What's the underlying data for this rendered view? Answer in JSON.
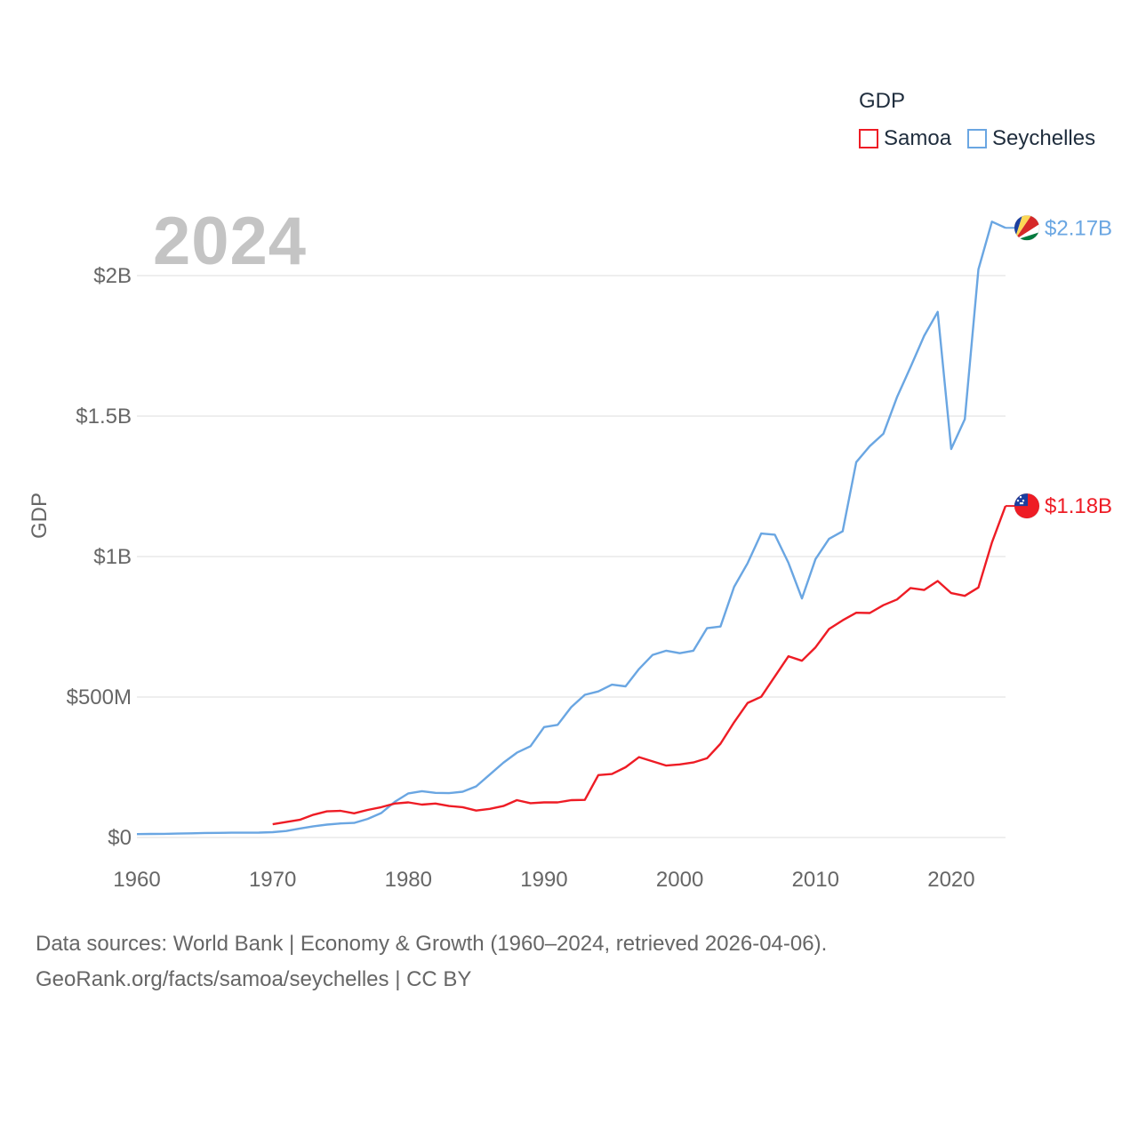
{
  "legend": {
    "title": "GDP",
    "items": [
      {
        "name": "Samoa",
        "color": "#ee1c25"
      },
      {
        "name": "Seychelles",
        "color": "#6aa6e2"
      }
    ]
  },
  "year_label": "2024",
  "footer": {
    "line1": "Data sources: World Bank | Economy & Growth (1960–2024, retrieved 2026-04-06).",
    "line2": "GeoRank.org/facts/samoa/seychelles | CC BY"
  },
  "chart_data": {
    "type": "line",
    "title": "",
    "xlabel": "",
    "ylabel": "GDP",
    "xlim": [
      1960,
      2024
    ],
    "ylim": [
      0,
      2000000000
    ],
    "x_ticks": [
      {
        "value": 1960,
        "label": "1960"
      },
      {
        "value": 1970,
        "label": "1970"
      },
      {
        "value": 1980,
        "label": "1980"
      },
      {
        "value": 1990,
        "label": "1990"
      },
      {
        "value": 2000,
        "label": "2000"
      },
      {
        "value": 2010,
        "label": "2010"
      },
      {
        "value": 2020,
        "label": "2020"
      }
    ],
    "y_ticks": [
      {
        "value": 0,
        "label": "$0"
      },
      {
        "value": 500000000,
        "label": "$500M"
      },
      {
        "value": 1000000000,
        "label": "$1B"
      },
      {
        "value": 1500000000,
        "label": "$1.5B"
      },
      {
        "value": 2000000000,
        "label": "$2B"
      }
    ],
    "grid": true,
    "legend_position": "top-right",
    "series": [
      {
        "name": "Seychelles",
        "color": "#6aa6e2",
        "end_label": "$2.17B",
        "x": [
          1960,
          1961,
          1962,
          1963,
          1964,
          1965,
          1966,
          1967,
          1968,
          1969,
          1970,
          1971,
          1972,
          1973,
          1974,
          1975,
          1976,
          1977,
          1978,
          1979,
          1980,
          1981,
          1982,
          1983,
          1984,
          1985,
          1986,
          1987,
          1988,
          1989,
          1990,
          1991,
          1992,
          1993,
          1994,
          1995,
          1996,
          1997,
          1998,
          1999,
          2000,
          2001,
          2002,
          2003,
          2004,
          2005,
          2006,
          2007,
          2008,
          2009,
          2010,
          2011,
          2012,
          2013,
          2014,
          2015,
          2016,
          2017,
          2018,
          2019,
          2020,
          2021,
          2022,
          2023,
          2024
        ],
        "values": [
          12000000,
          12500000,
          13000000,
          14000000,
          15000000,
          16000000,
          16500000,
          17000000,
          17000000,
          17500000,
          19000000,
          23000000,
          32000000,
          40000000,
          46000000,
          50000000,
          52000000,
          66000000,
          87000000,
          127000000,
          157000000,
          165000000,
          159000000,
          158000000,
          163000000,
          182000000,
          224000000,
          266000000,
          302000000,
          325000000,
          393000000,
          401000000,
          464000000,
          508000000,
          520000000,
          544000000,
          538000000,
          600000000,
          650000000,
          665000000,
          656000000,
          665000000,
          745000000,
          751000000,
          892000000,
          977000000,
          1082000000,
          1078000000,
          978000000,
          851000000,
          991000000,
          1063000000,
          1090000000,
          1336000000,
          1393000000,
          1437000000,
          1567000000,
          1674000000,
          1785000000,
          1871000000,
          1383000000,
          1489000000,
          2022000000,
          2192000000,
          2170000000
        ]
      },
      {
        "name": "Samoa",
        "color": "#ee1c25",
        "end_label": "$1.18B",
        "x": [
          1970,
          1971,
          1972,
          1973,
          1974,
          1975,
          1976,
          1977,
          1978,
          1979,
          1980,
          1981,
          1982,
          1983,
          1984,
          1985,
          1986,
          1987,
          1988,
          1989,
          1990,
          1991,
          1992,
          1993,
          1994,
          1995,
          1996,
          1997,
          1998,
          1999,
          2000,
          2001,
          2002,
          2003,
          2004,
          2005,
          2006,
          2007,
          2008,
          2009,
          2010,
          2011,
          2012,
          2013,
          2014,
          2015,
          2016,
          2017,
          2018,
          2019,
          2020,
          2021,
          2022,
          2023,
          2024
        ],
        "values": [
          47000000,
          55000000,
          63000000,
          81000000,
          93000000,
          95000000,
          86000000,
          98000000,
          108000000,
          121000000,
          125000000,
          117000000,
          121000000,
          112000000,
          108000000,
          96000000,
          102000000,
          112000000,
          133000000,
          122000000,
          125000000,
          125000000,
          133000000,
          134000000,
          222000000,
          226000000,
          250000000,
          286000000,
          271000000,
          256000000,
          260000000,
          267000000,
          282000000,
          334000000,
          410000000,
          479000000,
          501000000,
          573000000,
          645000000,
          629000000,
          677000000,
          742000000,
          773000000,
          800000000,
          799000000,
          827000000,
          847000000,
          888000000,
          881000000,
          913000000,
          870000000,
          860000000,
          890000000,
          1050000000,
          1180000000
        ]
      }
    ]
  }
}
